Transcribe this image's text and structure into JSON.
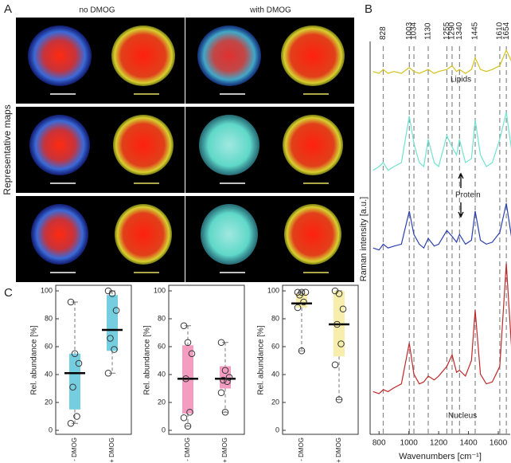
{
  "panel_labels": [
    "A",
    "B",
    "C"
  ],
  "panel_a": {
    "column_labels": [
      "no DMOG",
      "with DMOG"
    ],
    "row_label": "Representative maps"
  },
  "chart_data": [
    {
      "type": "line",
      "xlabel": "Wavenumbers [cm⁻¹]",
      "ylabel": "Raman intensity [a.u.]",
      "x": [
        760,
        800,
        828,
        860,
        900,
        950,
        1003,
        1034,
        1070,
        1100,
        1130,
        1170,
        1200,
        1255,
        1290,
        1320,
        1340,
        1380,
        1420,
        1445,
        1480,
        1520,
        1560,
        1610,
        1654,
        1690
      ],
      "xlim": [
        740,
        1680
      ],
      "xticks": [
        800,
        1000,
        1200,
        1400,
        1600
      ],
      "ylim": [
        0,
        10
      ],
      "peaks": [
        828,
        1003,
        1034,
        1130,
        1255,
        1290,
        1340,
        1445,
        1610,
        1654
      ],
      "annotations": [
        "Lipids",
        "Protein",
        "Nucleus"
      ],
      "series": [
        {
          "color": "#d4c21a",
          "values": [
            9.35,
            9.3,
            9.4,
            9.3,
            9.35,
            9.3,
            9.45,
            9.35,
            9.3,
            9.35,
            9.4,
            9.3,
            9.35,
            9.4,
            9.5,
            9.35,
            9.4,
            9.3,
            9.4,
            9.7,
            9.4,
            9.35,
            9.4,
            9.5,
            9.9,
            9.6
          ]
        },
        {
          "color": "#6fe3cf",
          "values": [
            6.8,
            6.9,
            7.0,
            6.8,
            6.9,
            7.0,
            8.2,
            7.5,
            7.0,
            6.9,
            7.6,
            7.0,
            6.9,
            7.7,
            7.4,
            7.2,
            7.6,
            7.0,
            7.1,
            8.1,
            7.2,
            6.9,
            7.0,
            7.6,
            8.3,
            7.3
          ]
        },
        {
          "color": "#2b3fb0",
          "values": [
            4.8,
            4.75,
            4.9,
            4.8,
            4.85,
            4.9,
            5.75,
            5.15,
            4.9,
            4.8,
            5.05,
            4.85,
            4.9,
            5.25,
            5.1,
            4.95,
            5.15,
            4.9,
            5.0,
            5.75,
            5.0,
            4.9,
            4.95,
            5.2,
            5.95,
            5.05
          ]
        },
        {
          "color": "#c0282a",
          "values": [
            1.1,
            1.05,
            1.15,
            1.1,
            1.2,
            1.3,
            2.35,
            1.55,
            1.3,
            1.35,
            1.5,
            1.4,
            1.5,
            1.75,
            2.05,
            1.6,
            1.65,
            1.5,
            1.9,
            3.2,
            1.55,
            1.3,
            1.35,
            1.75,
            4.4,
            2.15
          ]
        }
      ]
    },
    {
      "type": "box",
      "ylabel": "Rel. abundance [%]",
      "categories": [
        "- DMOG",
        "+ DMOG"
      ],
      "ylim": [
        0,
        100
      ],
      "yticks": [
        0,
        20,
        40,
        60,
        80,
        100
      ],
      "color": "#5cc6da",
      "median": [
        41,
        72
      ],
      "q1": [
        15,
        57
      ],
      "q3": [
        55,
        97
      ],
      "whisker_low": [
        5,
        41
      ],
      "whisker_high": [
        92,
        100
      ],
      "points": [
        [
          92,
          55,
          48,
          31,
          10,
          5
        ],
        [
          100,
          98,
          86,
          66,
          58,
          41
        ]
      ]
    },
    {
      "type": "box",
      "ylabel": "Rel. abundance [%]",
      "categories": [
        "- DMOG",
        "+ DMOG"
      ],
      "ylim": [
        0,
        100
      ],
      "yticks": [
        0,
        20,
        40,
        60,
        80,
        100
      ],
      "color": "#f28cb6",
      "median": [
        37,
        37
      ],
      "q1": [
        12,
        30
      ],
      "q3": [
        61,
        46
      ],
      "whisker_low": [
        3,
        13
      ],
      "whisker_high": [
        75,
        63
      ],
      "points": [
        [
          75,
          63,
          55,
          37,
          13,
          9,
          3
        ],
        [
          63,
          43,
          38,
          36,
          35,
          27,
          13
        ]
      ]
    },
    {
      "type": "box",
      "ylabel": "Rel. abundance [%]",
      "categories": [
        "- DMOG",
        "+ DMOG"
      ],
      "ylim": [
        0,
        100
      ],
      "yticks": [
        0,
        20,
        40,
        60,
        80,
        100
      ],
      "color": "#f6eb9c",
      "median": [
        91,
        76
      ],
      "q1": [
        88,
        53
      ],
      "q3": [
        98,
        100
      ],
      "whisker_low": [
        57,
        22
      ],
      "whisker_high": [
        100,
        100
      ],
      "points": [
        [
          99,
          99,
          99,
          97,
          92,
          88,
          57
        ],
        [
          100,
          98,
          87,
          76,
          62,
          47,
          22
        ]
      ]
    }
  ]
}
